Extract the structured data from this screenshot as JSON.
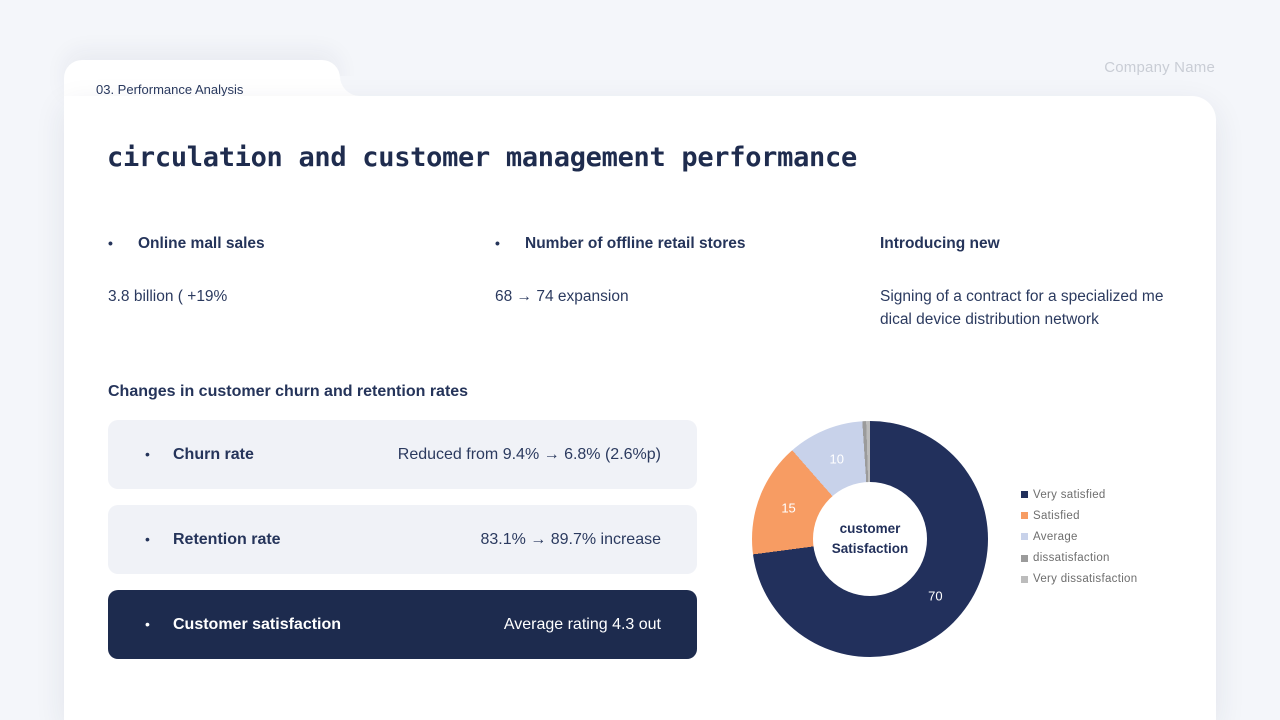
{
  "page": {
    "company_name": "Company Name",
    "tab_label": "03. Performance Analysis",
    "title": "circulation and customer management performance"
  },
  "stats": [
    {
      "label": "Online mall sales",
      "value": "3.8 billion ( +19%"
    },
    {
      "label": "Number of offline retail stores",
      "value": "68 → 74 expansion"
    },
    {
      "label": "Introducing new",
      "value": "Signing of a contract for a specialized medical device distribution network"
    }
  ],
  "churn_section": {
    "heading": "Changes in customer churn and retention rates",
    "rows": [
      {
        "label": "Churn rate",
        "value": "Reduced from 9.4% → 6.8% (2.6%p)"
      },
      {
        "label": "Retention rate",
        "value": "83.1% → 89.7% increase"
      },
      {
        "label": "Customer satisfaction",
        "value": "Average rating 4.3 out"
      }
    ]
  },
  "chart_data": {
    "type": "pie",
    "donut": true,
    "center_label": [
      "customer",
      "Satisfaction"
    ],
    "segments": [
      {
        "label": "Very satisfied",
        "value": 70,
        "color": "#22305c",
        "data_label": "70"
      },
      {
        "label": "Satisfied",
        "value": 15,
        "color": "#f79c63",
        "data_label": "15"
      },
      {
        "label": "Average",
        "value": 10,
        "color": "#c8d2ea",
        "data_label": "10"
      },
      {
        "label": "dissatisfaction",
        "value": 0.5,
        "color": "#9b9b9b",
        "data_label": ""
      },
      {
        "label": "Very dissatisfaction",
        "value": 0.5,
        "color": "#bcbcbc",
        "data_label": ""
      }
    ],
    "legend_position": "right",
    "data_label_color": "#ffffff",
    "start_angle_deg": 0
  }
}
